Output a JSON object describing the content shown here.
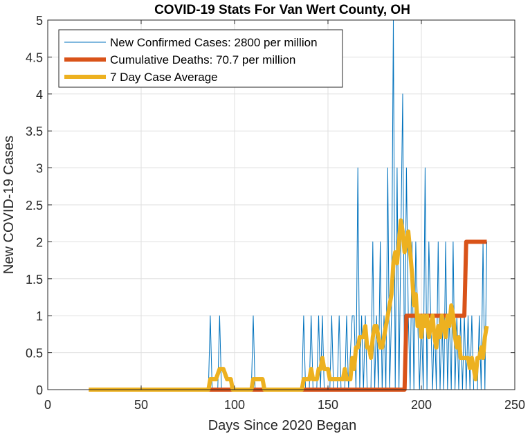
{
  "chart_data": {
    "type": "line",
    "title": "COVID-19 Stats For Van Wert County, OH",
    "xlabel": "Days Since 2020 Began",
    "ylabel": "New COVID-19 Cases",
    "xlim": [
      0,
      250
    ],
    "ylim": [
      0,
      5
    ],
    "xticks": [
      "0",
      "50",
      "100",
      "150",
      "200",
      "250"
    ],
    "yticks": [
      "0",
      "0.5",
      "1",
      "1.5",
      "2",
      "2.5",
      "3",
      "3.5",
      "4",
      "4.5",
      "5"
    ],
    "grid": true,
    "legend_position": "top-left",
    "series": [
      {
        "name": "New Confirmed Cases: 2800 per million",
        "color": "#0072BD",
        "line_width": "thin",
        "points": [
          [
            22,
            0
          ],
          [
            86,
            0
          ],
          [
            87,
            1
          ],
          [
            88,
            0
          ],
          [
            91,
            0
          ],
          [
            92,
            1
          ],
          [
            93,
            0
          ],
          [
            109,
            0
          ],
          [
            110,
            1
          ],
          [
            111,
            0
          ],
          [
            136,
            0
          ],
          [
            137,
            1
          ],
          [
            138,
            0
          ],
          [
            140,
            0
          ],
          [
            141,
            1
          ],
          [
            142,
            0
          ],
          [
            144,
            0
          ],
          [
            145,
            1
          ],
          [
            146,
            0
          ],
          [
            147,
            1
          ],
          [
            148,
            0
          ],
          [
            151,
            0
          ],
          [
            152,
            1
          ],
          [
            153,
            0
          ],
          [
            155,
            0
          ],
          [
            156,
            1
          ],
          [
            157,
            0
          ],
          [
            159,
            0
          ],
          [
            160,
            1
          ],
          [
            161,
            0
          ],
          [
            163,
            1
          ],
          [
            164,
            1
          ],
          [
            165,
            0
          ],
          [
            166,
            3
          ],
          [
            167,
            0
          ],
          [
            168,
            1
          ],
          [
            169,
            0
          ],
          [
            170,
            1
          ],
          [
            171,
            0
          ],
          [
            173,
            0
          ],
          [
            174,
            2
          ],
          [
            175,
            0
          ],
          [
            176,
            1
          ],
          [
            177,
            0
          ],
          [
            178,
            2
          ],
          [
            179,
            0
          ],
          [
            180,
            1
          ],
          [
            181,
            0
          ],
          [
            182,
            3
          ],
          [
            183,
            0
          ],
          [
            184,
            1
          ],
          [
            185,
            5
          ],
          [
            186,
            0
          ],
          [
            187,
            3
          ],
          [
            188,
            0
          ],
          [
            189,
            2
          ],
          [
            190,
            4
          ],
          [
            191,
            0
          ],
          [
            192,
            3
          ],
          [
            193,
            1
          ],
          [
            194,
            0
          ],
          [
            195,
            2
          ],
          [
            196,
            0
          ],
          [
            197,
            2
          ],
          [
            198,
            1
          ],
          [
            199,
            0
          ],
          [
            200,
            1
          ],
          [
            201,
            0
          ],
          [
            202,
            3
          ],
          [
            203,
            0
          ],
          [
            204,
            2
          ],
          [
            205,
            1
          ],
          [
            206,
            0
          ],
          [
            207,
            1
          ],
          [
            208,
            0
          ],
          [
            209,
            2
          ],
          [
            210,
            0
          ],
          [
            211,
            1
          ],
          [
            212,
            0
          ],
          [
            213,
            2
          ],
          [
            214,
            0
          ],
          [
            215,
            1
          ],
          [
            216,
            0
          ],
          [
            217,
            2
          ],
          [
            218,
            0
          ],
          [
            219,
            1
          ],
          [
            220,
            0
          ],
          [
            221,
            1
          ],
          [
            222,
            0
          ],
          [
            223,
            1
          ],
          [
            224,
            0
          ],
          [
            225,
            1
          ],
          [
            226,
            0
          ],
          [
            227,
            1
          ],
          [
            228,
            0
          ],
          [
            230,
            0
          ],
          [
            231,
            1
          ],
          [
            232,
            0
          ],
          [
            233,
            2
          ],
          [
            234,
            0
          ],
          [
            235,
            2
          ]
        ]
      },
      {
        "name": "Cumulative Deaths: 70.7 per million",
        "color": "#D95319",
        "line_width": "thick",
        "points": [
          [
            22,
            0
          ],
          [
            191,
            0
          ],
          [
            192,
            1
          ],
          [
            223,
            1
          ],
          [
            224,
            2
          ],
          [
            235,
            2
          ]
        ]
      },
      {
        "name": "7 Day Case Average",
        "color": "#EDB120",
        "line_width": "thick",
        "points": [
          [
            22,
            0
          ],
          [
            86,
            0
          ],
          [
            87,
            0.14
          ],
          [
            90,
            0.14
          ],
          [
            92,
            0.28
          ],
          [
            94,
            0.28
          ],
          [
            96,
            0.14
          ],
          [
            98,
            0.14
          ],
          [
            99,
            0
          ],
          [
            109,
            0
          ],
          [
            110,
            0.14
          ],
          [
            115,
            0.14
          ],
          [
            116,
            0
          ],
          [
            136,
            0
          ],
          [
            137,
            0.14
          ],
          [
            140,
            0.14
          ],
          [
            141,
            0.28
          ],
          [
            142,
            0.14
          ],
          [
            144,
            0.14
          ],
          [
            145,
            0.28
          ],
          [
            146,
            0.28
          ],
          [
            147,
            0.43
          ],
          [
            148,
            0.28
          ],
          [
            150,
            0.28
          ],
          [
            151,
            0.14
          ],
          [
            158,
            0.14
          ],
          [
            159,
            0.28
          ],
          [
            160,
            0.14
          ],
          [
            162,
            0.14
          ],
          [
            163,
            0.43
          ],
          [
            164,
            0.28
          ],
          [
            165,
            0.57
          ],
          [
            166,
            0.57
          ],
          [
            167,
            0.71
          ],
          [
            168,
            0.71
          ],
          [
            169,
            0.71
          ],
          [
            170,
            0.86
          ],
          [
            171,
            0.57
          ],
          [
            172,
            0.57
          ],
          [
            173,
            0.43
          ],
          [
            174,
            0.71
          ],
          [
            175,
            0.86
          ],
          [
            176,
            0.86
          ],
          [
            177,
            0.71
          ],
          [
            178,
            0.57
          ],
          [
            179,
            0.57
          ],
          [
            180,
            0.71
          ],
          [
            181,
            0.86
          ],
          [
            182,
            1
          ],
          [
            183,
            1.14
          ],
          [
            184,
            1.29
          ],
          [
            185,
            1.71
          ],
          [
            186,
            1.86
          ],
          [
            187,
            1.71
          ],
          [
            188,
            2
          ],
          [
            189,
            2.29
          ],
          [
            190,
            2.14
          ],
          [
            191,
            1.86
          ],
          [
            192,
            2
          ],
          [
            193,
            2.14
          ],
          [
            194,
            1.86
          ],
          [
            195,
            1.57
          ],
          [
            196,
            1.14
          ],
          [
            197,
            1.29
          ],
          [
            198,
            0.86
          ],
          [
            199,
            1
          ],
          [
            200,
            0.71
          ],
          [
            201,
            1
          ],
          [
            202,
            0.86
          ],
          [
            203,
            1
          ],
          [
            204,
            0.71
          ],
          [
            205,
            0.86
          ],
          [
            206,
            1
          ],
          [
            207,
            0.71
          ],
          [
            208,
            0.57
          ],
          [
            209,
            0.86
          ],
          [
            210,
            0.71
          ],
          [
            211,
            1
          ],
          [
            212,
            0.86
          ],
          [
            213,
            0.71
          ],
          [
            214,
            1
          ],
          [
            215,
            0.86
          ],
          [
            216,
            1.14
          ],
          [
            217,
            1
          ],
          [
            218,
            0.71
          ],
          [
            219,
            0.57
          ],
          [
            220,
            0.71
          ],
          [
            221,
            0.43
          ],
          [
            222,
            0.43
          ],
          [
            223,
            0.43
          ],
          [
            224,
            0.43
          ],
          [
            225,
            0.43
          ],
          [
            226,
            0.29
          ],
          [
            227,
            0.43
          ],
          [
            228,
            0.29
          ],
          [
            229,
            0.14
          ],
          [
            230,
            0.43
          ],
          [
            231,
            0.43
          ],
          [
            232,
            0.57
          ],
          [
            233,
            0.43
          ],
          [
            234,
            0.71
          ],
          [
            235,
            0.86
          ]
        ]
      }
    ]
  }
}
